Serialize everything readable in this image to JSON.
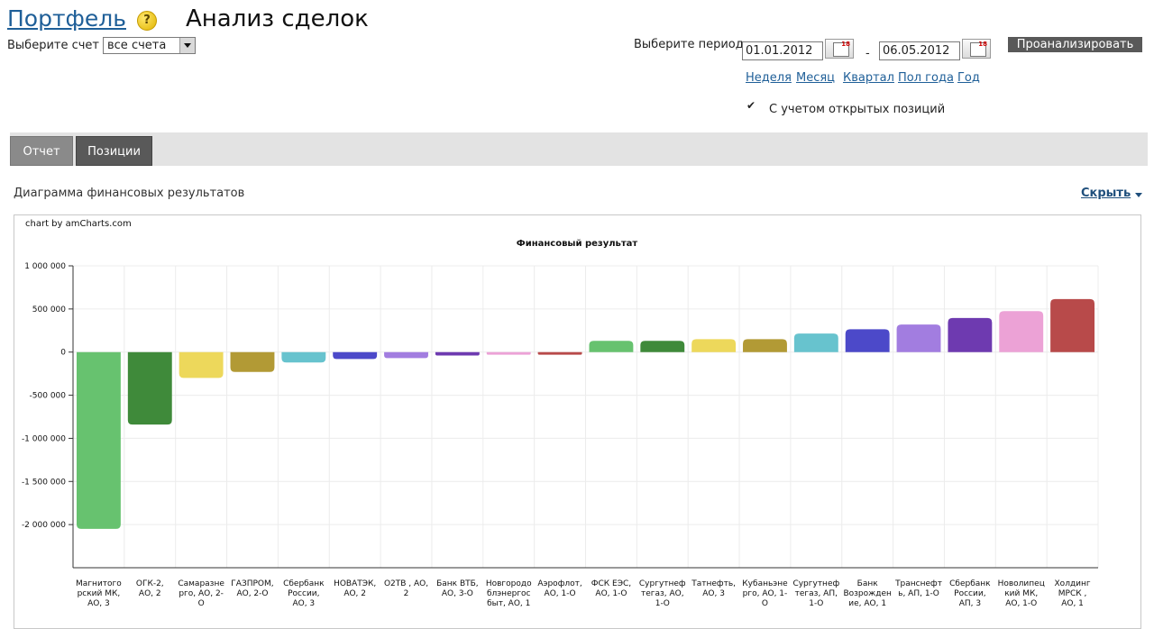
{
  "header": {
    "portfolio_link": "Портфель",
    "help_icon": "?",
    "page_title": "Анализ сделок",
    "account_label": "Выберите счет",
    "account_value": "все счета",
    "period_label": "Выберите период",
    "date_from": "01.01.2012",
    "date_sep": "-",
    "date_to": "06.05.2012",
    "analyze_button": "Проанализировать",
    "period_links": [
      "Неделя",
      "Месяц",
      "Квартал",
      "Пол года",
      "Год"
    ],
    "open_positions_label": "С учетом открытых позиций",
    "open_positions_checked": true
  },
  "tabs": [
    "Отчет",
    "Позиции"
  ],
  "section": {
    "title": "Диаграмма финансовых результатов",
    "hide_link": "Скрыть"
  },
  "chart_credit": "chart by amCharts.com",
  "chart_data": {
    "type": "bar",
    "title": "Финансовый результат",
    "ylim": [
      -2500000,
      1000000
    ],
    "y_ticks": [
      {
        "value": 1000000,
        "label": "1 000 000"
      },
      {
        "value": 500000,
        "label": "500 000"
      },
      {
        "value": 0,
        "label": "0"
      },
      {
        "value": -500000,
        "label": "-500 000"
      },
      {
        "value": -1000000,
        "label": "-1 000 000"
      },
      {
        "value": -1500000,
        "label": "-1 500 000"
      },
      {
        "value": -2000000,
        "label": "-2 000 000"
      }
    ],
    "categories": [
      [
        "Магнитого",
        "рский МК,",
        "АО, 3"
      ],
      [
        "ОГК-2,",
        "АО, 2"
      ],
      [
        "Самаразне",
        "рго, АО, 2-",
        "О"
      ],
      [
        "ГАЗПРОМ,",
        "АО, 2-О"
      ],
      [
        "Сбербанк",
        "России,",
        "АО, 3"
      ],
      [
        "НОВАТЭК,",
        "АО, 2"
      ],
      [
        "О2ТВ , АО,",
        "2"
      ],
      [
        "Банк ВТБ,",
        "АО, 3-О"
      ],
      [
        "Новгородо",
        "блэнергос",
        "быт, АО, 1"
      ],
      [
        "Аэрофлот,",
        "АО, 1-О"
      ],
      [
        "ФСК ЕЭС,",
        "АО, 1-О"
      ],
      [
        "Сургутнеф",
        "тегаз, АО,",
        "1-О"
      ],
      [
        "Татнефть,",
        "АО, 3"
      ],
      [
        "Кубаньэне",
        "рго, АО, 1-",
        "О"
      ],
      [
        "Сургутнеф",
        "тегаз, АП,",
        "1-О"
      ],
      [
        "Банк",
        "Возрожден",
        "ие, АО, 1"
      ],
      [
        "Транснефт",
        "ь, АП, 1-О"
      ],
      [
        "Сбербанк",
        "России,",
        "АП, 3"
      ],
      [
        "Новолипец",
        "кий МК,",
        "АО, 1-О"
      ],
      [
        "Холдинг",
        "МРСК ,",
        "АО, 1"
      ]
    ],
    "values": [
      -2050000,
      -840000,
      -300000,
      -230000,
      -120000,
      -80000,
      -70000,
      -40000,
      -30000,
      -30000,
      130000,
      130000,
      150000,
      150000,
      215000,
      265000,
      320000,
      395000,
      475000,
      615000
    ],
    "colors": [
      "#67c26f",
      "#3f8a3a",
      "#edd85b",
      "#b29a35",
      "#67c3ce",
      "#4c49c9",
      "#a27de0",
      "#6e3ab0",
      "#eca2d6",
      "#b84a4a",
      "#67c26f",
      "#3f8a3a",
      "#edd85b",
      "#b29a35",
      "#67c3ce",
      "#4c49c9",
      "#a27de0",
      "#6e3ab0",
      "#eca2d6",
      "#b84a4a"
    ],
    "grid": true
  }
}
